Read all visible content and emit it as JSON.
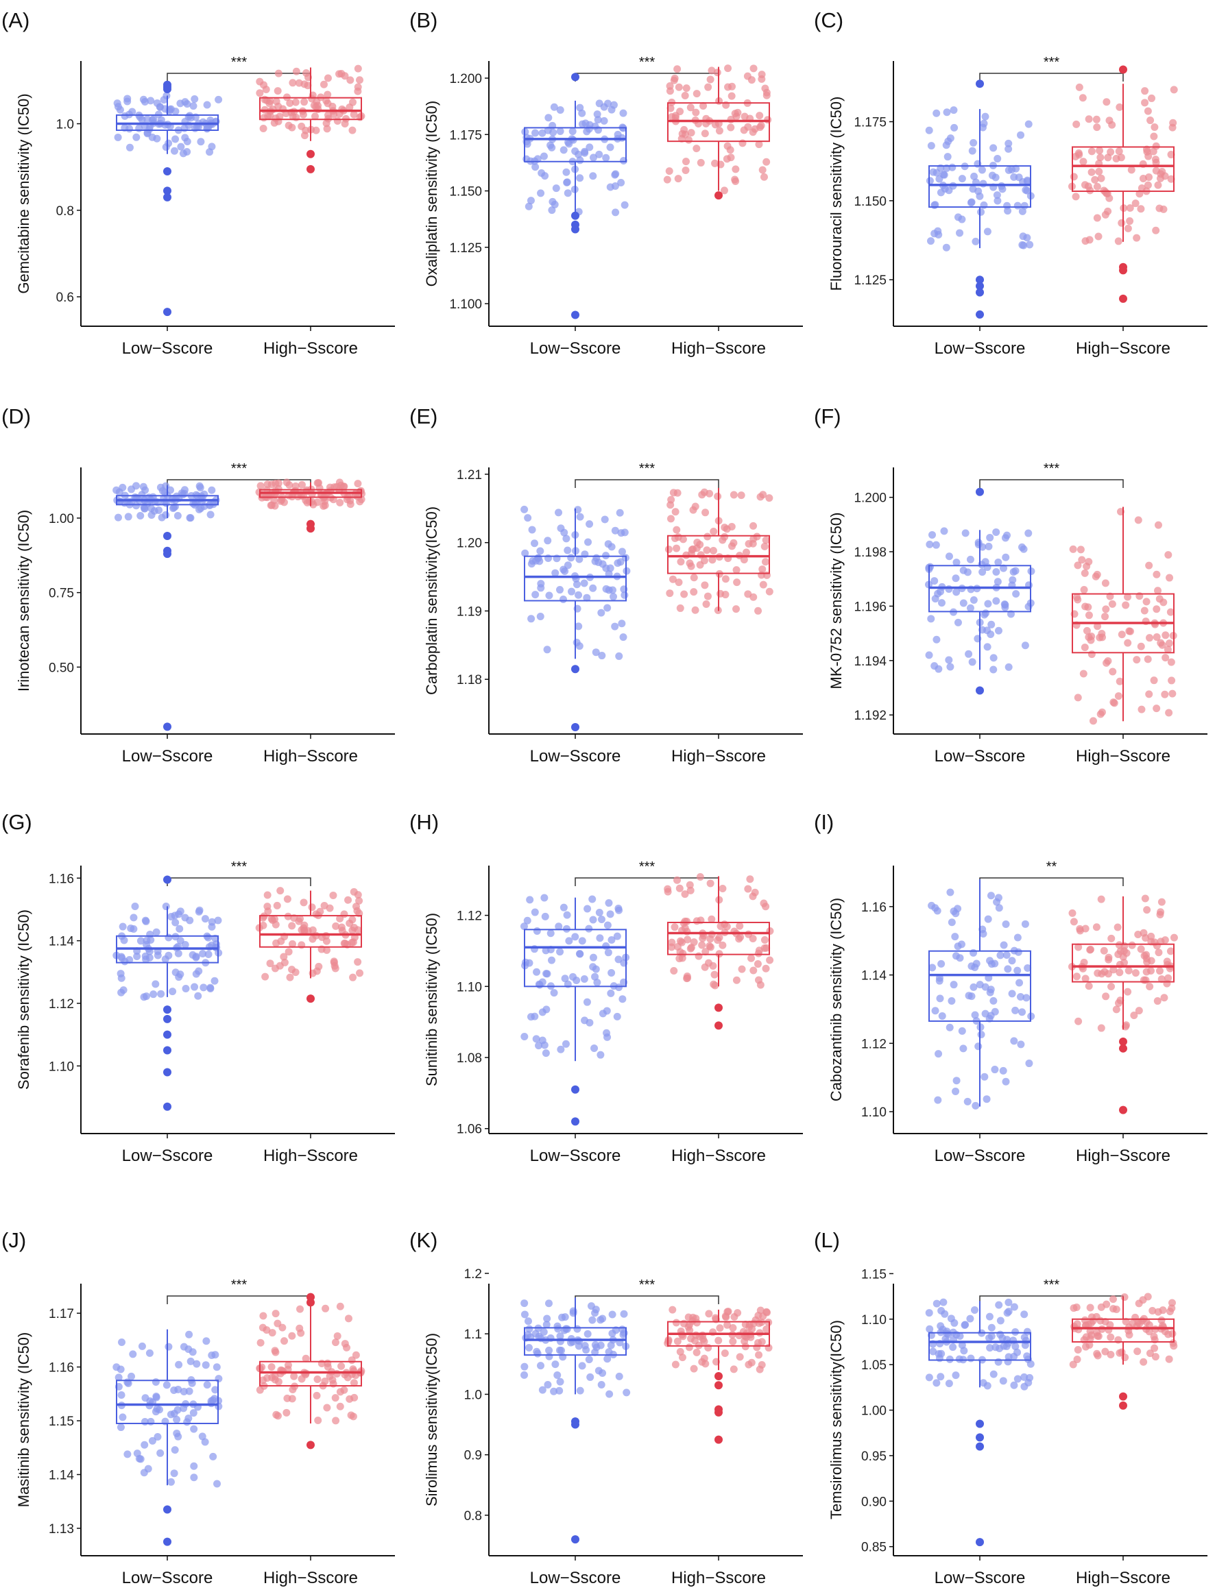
{
  "chart_data": {
    "type": "box",
    "layout": "3 columns x 4 rows",
    "colors": {
      "low": "#4a5fe0",
      "low_points": "#8a99ee",
      "high": "#e03a4a",
      "high_points": "#eb8a93",
      "axis": "#111111"
    },
    "categories": [
      "Low−Sscore",
      "High−Sscore"
    ],
    "panels": [
      {
        "label": "(A)",
        "ylabel": "Gemcitabine sensitivity (IC50)",
        "significance": "***",
        "ylim": [
          0.532,
          1.145
        ],
        "ticks": [
          0.6,
          0.8,
          1.0
        ],
        "tick_labels": [
          "0.6",
          "0.8",
          "1.0"
        ],
        "groups": [
          {
            "name": "Low−Sscore",
            "whisker_low": 0.93,
            "q1": 0.985,
            "median": 1.0,
            "q3": 1.02,
            "whisker_high": 1.065,
            "outliers": [
              1.09,
              1.085,
              1.08,
              0.89,
              0.845,
              0.83,
              0.565
            ]
          },
          {
            "name": "High−Sscore",
            "whisker_low": 0.96,
            "q1": 1.01,
            "median": 1.03,
            "q3": 1.06,
            "whisker_high": 1.13,
            "outliers": [
              0.93,
              0.895
            ]
          }
        ]
      },
      {
        "label": "(B)",
        "ylabel": "Oxaliplatin sensitivity (IC50)",
        "significance": "***",
        "ylim": [
          1.09,
          1.2076
        ],
        "ticks": [
          1.1,
          1.125,
          1.15,
          1.175,
          1.2
        ],
        "tick_labels": [
          "1.100",
          "1.125",
          "1.150",
          "1.175",
          "1.200"
        ],
        "groups": [
          {
            "name": "Low−Sscore",
            "whisker_low": 1.14,
            "q1": 1.163,
            "median": 1.173,
            "q3": 1.178,
            "whisker_high": 1.19,
            "outliers": [
              1.2005,
              1.139,
              1.135,
              1.133,
              1.095
            ]
          },
          {
            "name": "High−Sscore",
            "whisker_low": 1.15,
            "q1": 1.172,
            "median": 1.181,
            "q3": 1.189,
            "whisker_high": 1.205,
            "outliers": [
              1.148
            ]
          }
        ]
      },
      {
        "label": "(C)",
        "ylabel": "Fluorouracil sensitivity (IC50)",
        "significance": "***",
        "ylim": [
          1.1103,
          1.1942
        ],
        "ticks": [
          1.125,
          1.15,
          1.175
        ],
        "tick_labels": [
          "1.125",
          "1.150",
          "1.175"
        ],
        "groups": [
          {
            "name": "Low−Sscore",
            "whisker_low": 1.135,
            "q1": 1.148,
            "median": 1.155,
            "q3": 1.161,
            "whisker_high": 1.179,
            "outliers": [
              1.187,
              1.125,
              1.123,
              1.121,
              1.114
            ]
          },
          {
            "name": "High−Sscore",
            "whisker_low": 1.137,
            "q1": 1.153,
            "median": 1.161,
            "q3": 1.167,
            "whisker_high": 1.187,
            "outliers": [
              1.1915,
              1.129,
              1.128,
              1.119
            ]
          }
        ]
      },
      {
        "label": "(D)",
        "ylabel": "Irinotecan sensitivity (IC50)",
        "significance": "***",
        "ylim": [
          0.2755,
          1.17
        ],
        "ticks": [
          0.5,
          0.75,
          1.0
        ],
        "tick_labels": [
          "0.50",
          "0.75",
          "1.00"
        ],
        "groups": [
          {
            "name": "Low−Sscore",
            "whisker_low": 1.0,
            "q1": 1.045,
            "median": 1.06,
            "q3": 1.075,
            "whisker_high": 1.11,
            "outliers": [
              0.94,
              0.89,
              0.88,
              0.3
            ]
          },
          {
            "name": "High−Sscore",
            "whisker_low": 1.04,
            "q1": 1.07,
            "median": 1.085,
            "q3": 1.095,
            "whisker_high": 1.12,
            "outliers": [
              0.98,
              0.965
            ]
          }
        ]
      },
      {
        "label": "(E)",
        "ylabel": "Carboplatin sensitivity(IC50)",
        "significance": "***",
        "ylim": [
          1.172,
          1.211
        ],
        "ticks": [
          1.18,
          1.19,
          1.2,
          1.21
        ],
        "tick_labels": [
          "1.18",
          "1.19",
          "1.20",
          "1.21"
        ],
        "groups": [
          {
            "name": "Low−Sscore",
            "whisker_low": 1.183,
            "q1": 1.1915,
            "median": 1.195,
            "q3": 1.198,
            "whisker_high": 1.205,
            "outliers": [
              1.1815,
              1.173
            ]
          },
          {
            "name": "High−Sscore",
            "whisker_low": 1.19,
            "q1": 1.1955,
            "median": 1.198,
            "q3": 1.201,
            "whisker_high": 1.208,
            "outliers": []
          }
        ]
      },
      {
        "label": "(F)",
        "ylabel": "MK-0752 sensitivity (IC50)",
        "significance": "***",
        "ylim": [
          1.1913,
          1.2011
        ],
        "ticks": [
          1.192,
          1.194,
          1.196,
          1.198,
          1.2
        ],
        "tick_labels": [
          "1.192",
          "1.194",
          "1.196",
          "1.198",
          "1.200"
        ],
        "groups": [
          {
            "name": "Low−Sscore",
            "whisker_low": 1.19366,
            "q1": 1.1958,
            "median": 1.19668,
            "q3": 1.19749,
            "whisker_high": 1.1988,
            "outliers": [
              1.2002,
              1.1929
            ]
          },
          {
            "name": "High−Sscore",
            "whisker_low": 1.19177,
            "q1": 1.19429,
            "median": 1.19538,
            "q3": 1.19645,
            "whisker_high": 1.19965,
            "outliers": []
          }
        ]
      },
      {
        "label": "(G)",
        "ylabel": "Sorafenib sensitivity (IC50)",
        "significance": "***",
        "ylim": [
          1.0784,
          1.164
        ],
        "ticks": [
          1.1,
          1.12,
          1.14,
          1.16
        ],
        "tick_labels": [
          "1.10",
          "1.12",
          "1.14",
          "1.16"
        ],
        "groups": [
          {
            "name": "Low−Sscore",
            "whisker_low": 1.122,
            "q1": 1.133,
            "median": 1.1375,
            "q3": 1.1415,
            "whisker_high": 1.151,
            "outliers": [
              1.1595,
              1.118,
              1.115,
              1.11,
              1.105,
              1.098,
              1.087
            ]
          },
          {
            "name": "High−Sscore",
            "whisker_low": 1.128,
            "q1": 1.138,
            "median": 1.142,
            "q3": 1.148,
            "whisker_high": 1.156,
            "outliers": [
              1.1215
            ]
          }
        ]
      },
      {
        "label": "(H)",
        "ylabel": "Sunitinib sensitivity (IC50)",
        "significance": "***",
        "ylim": [
          1.0586,
          1.134
        ],
        "ticks": [
          1.06,
          1.08,
          1.1,
          1.12
        ],
        "tick_labels": [
          "1.06",
          "1.08",
          "1.10",
          "1.12"
        ],
        "groups": [
          {
            "name": "Low−Sscore",
            "whisker_low": 1.079,
            "q1": 1.1,
            "median": 1.111,
            "q3": 1.116,
            "whisker_high": 1.125,
            "outliers": [
              1.071,
              1.062
            ]
          },
          {
            "name": "High−Sscore",
            "whisker_low": 1.1,
            "q1": 1.109,
            "median": 1.115,
            "q3": 1.118,
            "whisker_high": 1.131,
            "outliers": [
              1.094,
              1.089
            ]
          }
        ]
      },
      {
        "label": "(I)",
        "ylabel": "Cabozantinib sensitivity (IC50)",
        "significance": "**",
        "ylim": [
          1.0936,
          1.172
        ],
        "ticks": [
          1.1,
          1.12,
          1.14,
          1.16
        ],
        "tick_labels": [
          "1.10",
          "1.12",
          "1.14",
          "1.16"
        ],
        "groups": [
          {
            "name": "Low−Sscore",
            "whisker_low": 1.1015,
            "q1": 1.1265,
            "median": 1.14,
            "q3": 1.147,
            "whisker_high": 1.168,
            "outliers": []
          },
          {
            "name": "High−Sscore",
            "whisker_low": 1.124,
            "q1": 1.138,
            "median": 1.1425,
            "q3": 1.149,
            "whisker_high": 1.163,
            "outliers": [
              1.1205,
              1.1185,
              1.1005
            ]
          }
        ]
      },
      {
        "label": "(J)",
        "ylabel": "Masitinib sensitivity (IC50)",
        "significance": "***",
        "ylim": [
          1.1249,
          1.1755
        ],
        "ticks": [
          1.13,
          1.14,
          1.15,
          1.16,
          1.17
        ],
        "tick_labels": [
          "1.13",
          "1.14",
          "1.15",
          "1.16",
          "1.17"
        ],
        "groups": [
          {
            "name": "Low−Sscore",
            "whisker_low": 1.138,
            "q1": 1.1495,
            "median": 1.153,
            "q3": 1.1575,
            "whisker_high": 1.167,
            "outliers": [
              1.1335,
              1.1275
            ]
          },
          {
            "name": "High−Sscore",
            "whisker_low": 1.1495,
            "q1": 1.1565,
            "median": 1.159,
            "q3": 1.161,
            "whisker_high": 1.1715,
            "outliers": [
              1.173,
              1.172,
              1.1455
            ]
          }
        ]
      },
      {
        "label": "(K)",
        "ylabel": "Sirolimus sensitivity(IC50)",
        "significance": "***",
        "ylim": [
          0.733,
          1.183
        ],
        "ticks": [
          0.8,
          0.9,
          1.0,
          1.1,
          1.2
        ],
        "tick_labels": [
          "0.8",
          "0.9",
          "1.0",
          "1.1",
          "1.2"
        ],
        "groups": [
          {
            "name": "Low−Sscore",
            "whisker_low": 1.0,
            "q1": 1.065,
            "median": 1.09,
            "q3": 1.11,
            "whisker_high": 1.16,
            "outliers": [
              0.955,
              0.95,
              0.76
            ]
          },
          {
            "name": "High−Sscore",
            "whisker_low": 1.04,
            "q1": 1.08,
            "median": 1.1,
            "q3": 1.12,
            "whisker_high": 1.14,
            "outliers": [
              1.03,
              1.015,
              0.975,
              0.97,
              0.925
            ]
          }
        ]
      },
      {
        "label": "(L)",
        "ylabel": "Temsirolimus sensitivity(IC50)",
        "significance": "***",
        "ylim": [
          0.84,
          1.139
        ],
        "ticks": [
          0.85,
          0.9,
          0.95,
          1.0,
          1.05,
          1.1,
          1.15
        ],
        "tick_labels": [
          "0.85",
          "0.90",
          "0.95",
          "1.00",
          "1.05",
          "1.10",
          "1.15"
        ],
        "groups": [
          {
            "name": "Low−Sscore",
            "whisker_low": 1.025,
            "q1": 1.055,
            "median": 1.075,
            "q3": 1.085,
            "whisker_high": 1.12,
            "outliers": [
              0.985,
              0.97,
              0.96,
              0.855
            ]
          },
          {
            "name": "High−Sscore",
            "whisker_low": 1.05,
            "q1": 1.075,
            "median": 1.09,
            "q3": 1.1,
            "whisker_high": 1.125,
            "outliers": [
              1.015,
              1.005
            ]
          }
        ]
      }
    ]
  }
}
